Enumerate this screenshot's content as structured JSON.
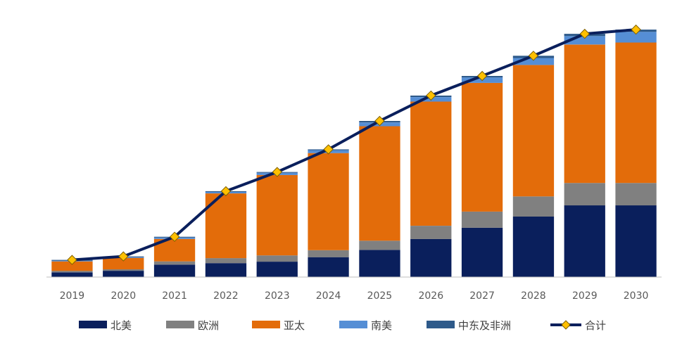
{
  "chart_data": {
    "type": "bar",
    "stacked": true,
    "title": "",
    "xlabel": "",
    "ylabel": "",
    "ylim": [
      0,
      100
    ],
    "categories": [
      "2019",
      "2020",
      "2021",
      "2022",
      "2023",
      "2024",
      "2025",
      "2026",
      "2027",
      "2028",
      "2029",
      "2030"
    ],
    "series": [
      {
        "name": "北美",
        "color": "#0a1f5c",
        "values": [
          1.9,
          2.5,
          5.0,
          5.6,
          6.2,
          8.0,
          10.9,
          15.3,
          19.8,
          24.3,
          28.8,
          28.8
        ]
      },
      {
        "name": "欧洲",
        "color": "#808080",
        "values": [
          0.6,
          0.6,
          1.3,
          2.0,
          2.5,
          2.8,
          3.7,
          5.3,
          6.5,
          8.1,
          9.0,
          9.0
        ]
      },
      {
        "name": "亚太",
        "color": "#e36c0a",
        "values": [
          3.8,
          4.6,
          9.0,
          26.0,
          32.3,
          39.0,
          46.0,
          49.9,
          51.7,
          52.8,
          55.6,
          56.4
        ]
      },
      {
        "name": "南美",
        "color": "#558ed5",
        "values": [
          0.3,
          0.3,
          0.6,
          0.6,
          0.9,
          1.2,
          1.5,
          1.8,
          2.2,
          2.8,
          3.4,
          4.3
        ]
      },
      {
        "name": "中东及非洲",
        "color": "#2e5a8a",
        "values": [
          0.3,
          0.3,
          0.3,
          0.3,
          0.3,
          0.3,
          0.6,
          0.6,
          0.6,
          0.9,
          0.9,
          0.9
        ]
      }
    ],
    "line": {
      "name": "合计",
      "color": "#0a1f5c",
      "marker_color": "#ffc000",
      "values": [
        6.9,
        8.3,
        16.2,
        34.5,
        42.2,
        51.3,
        62.7,
        72.9,
        80.8,
        88.9,
        97.7,
        99.4
      ]
    },
    "legend_position": "bottom",
    "grid": false
  }
}
